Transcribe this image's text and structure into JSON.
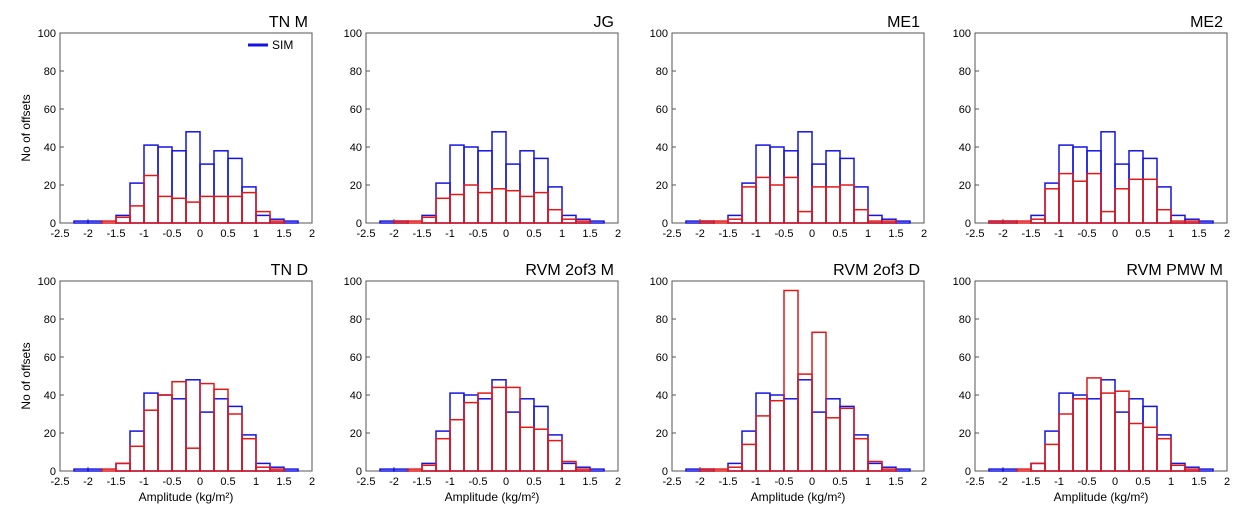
{
  "colors": {
    "sim": "#1414e0",
    "obs": "#e01818",
    "axis": "#555555",
    "grid": "#cccccc"
  },
  "legend": {
    "label": "SIM"
  },
  "xlabel": "Amplitude (kg/m²)",
  "ylabel": "No of offsets",
  "xticks": [
    "-2.5",
    "-2",
    "-1.5",
    "-1",
    "-0.5",
    "0",
    "0.5",
    "1",
    "1.5",
    "2"
  ],
  "yticks": [
    "0",
    "20",
    "40",
    "60",
    "80",
    "100"
  ],
  "chart_data": [
    {
      "type": "histogram",
      "title": "TN M",
      "xlim": [
        -2.5,
        2
      ],
      "ylim": [
        0,
        100
      ],
      "bin_edges": [
        -2.25,
        -2.0,
        -1.75,
        -1.5,
        -1.25,
        -1.0,
        -0.75,
        -0.5,
        -0.25,
        0.0,
        0.25,
        0.5,
        0.75,
        1.0,
        1.25,
        1.5,
        1.75,
        2.0
      ],
      "series": [
        {
          "name": "SIM",
          "values": [
            1,
            1,
            0,
            4,
            21,
            41,
            40,
            38,
            48,
            31,
            38,
            34,
            19,
            4,
            2,
            1,
            0
          ]
        },
        {
          "values": [
            0,
            0,
            1,
            3,
            9,
            25,
            14,
            13,
            11,
            14,
            14,
            14,
            16,
            6,
            1,
            0,
            0
          ]
        }
      ]
    },
    {
      "type": "histogram",
      "title": "JG",
      "xlim": [
        -2.5,
        2
      ],
      "ylim": [
        0,
        100
      ],
      "bin_edges": [
        -2.25,
        -2.0,
        -1.75,
        -1.5,
        -1.25,
        -1.0,
        -0.75,
        -0.5,
        -0.25,
        0.0,
        0.25,
        0.5,
        0.75,
        1.0,
        1.25,
        1.5,
        1.75,
        2.0
      ],
      "series": [
        {
          "name": "SIM",
          "values": [
            1,
            1,
            0,
            4,
            21,
            41,
            40,
            38,
            48,
            31,
            38,
            34,
            19,
            4,
            2,
            1,
            0
          ]
        },
        {
          "values": [
            0,
            1,
            1,
            3,
            13,
            15,
            20,
            16,
            18,
            17,
            14,
            16,
            7,
            2,
            1,
            0,
            0
          ]
        }
      ]
    },
    {
      "type": "histogram",
      "title": "ME1",
      "xlim": [
        -2.5,
        2
      ],
      "ylim": [
        0,
        100
      ],
      "bin_edges": [
        -2.25,
        -2.0,
        -1.75,
        -1.5,
        -1.25,
        -1.0,
        -0.75,
        -0.5,
        -0.25,
        0.0,
        0.25,
        0.5,
        0.75,
        1.0,
        1.25,
        1.5,
        1.75,
        2.0
      ],
      "series": [
        {
          "name": "SIM",
          "values": [
            1,
            1,
            0,
            4,
            21,
            41,
            40,
            38,
            48,
            31,
            38,
            34,
            19,
            4,
            2,
            1,
            0
          ]
        },
        {
          "values": [
            0,
            1,
            1,
            2,
            19,
            24,
            20,
            24,
            6,
            19,
            19,
            20,
            7,
            1,
            1,
            0,
            0
          ]
        }
      ]
    },
    {
      "type": "histogram",
      "title": "ME2",
      "xlim": [
        -2.5,
        2
      ],
      "ylim": [
        0,
        100
      ],
      "bin_edges": [
        -2.25,
        -2.0,
        -1.75,
        -1.5,
        -1.25,
        -1.0,
        -0.75,
        -0.5,
        -0.25,
        0.0,
        0.25,
        0.5,
        0.75,
        1.0,
        1.25,
        1.5,
        1.75,
        2.0
      ],
      "series": [
        {
          "name": "SIM",
          "values": [
            1,
            1,
            0,
            4,
            21,
            41,
            40,
            38,
            48,
            31,
            38,
            34,
            19,
            4,
            2,
            1,
            0
          ]
        },
        {
          "values": [
            1,
            1,
            1,
            2,
            18,
            26,
            22,
            26,
            6,
            18,
            23,
            23,
            7,
            1,
            1,
            0,
            0
          ]
        }
      ]
    },
    {
      "type": "histogram",
      "title": "TN D",
      "xlim": [
        -2.5,
        2
      ],
      "ylim": [
        0,
        100
      ],
      "bin_edges": [
        -2.25,
        -2.0,
        -1.75,
        -1.5,
        -1.25,
        -1.0,
        -0.75,
        -0.5,
        -0.25,
        0.0,
        0.25,
        0.5,
        0.75,
        1.0,
        1.25,
        1.5,
        1.75,
        2.0
      ],
      "series": [
        {
          "name": "SIM",
          "values": [
            1,
            1,
            0,
            4,
            21,
            41,
            40,
            38,
            48,
            31,
            38,
            34,
            19,
            4,
            2,
            1,
            0
          ]
        },
        {
          "values": [
            0,
            0,
            1,
            4,
            13,
            32,
            40,
            47,
            12,
            46,
            43,
            30,
            17,
            2,
            1,
            0,
            0
          ]
        }
      ]
    },
    {
      "type": "histogram",
      "title": "RVM 2of3 M",
      "xlim": [
        -2.5,
        2
      ],
      "ylim": [
        0,
        100
      ],
      "bin_edges": [
        -2.25,
        -2.0,
        -1.75,
        -1.5,
        -1.25,
        -1.0,
        -0.75,
        -0.5,
        -0.25,
        0.0,
        0.25,
        0.5,
        0.75,
        1.0,
        1.25,
        1.5,
        1.75,
        2.0
      ],
      "series": [
        {
          "name": "SIM",
          "values": [
            1,
            1,
            0,
            4,
            21,
            41,
            40,
            38,
            48,
            31,
            38,
            34,
            19,
            4,
            2,
            1,
            0
          ]
        },
        {
          "values": [
            0,
            0,
            1,
            3,
            17,
            27,
            36,
            41,
            44,
            44,
            23,
            22,
            16,
            5,
            1,
            0,
            0
          ]
        }
      ]
    },
    {
      "type": "histogram",
      "title": "RVM 2of3 D",
      "xlim": [
        -2.5,
        2
      ],
      "ylim": [
        0,
        100
      ],
      "bin_edges": [
        -2.25,
        -2.0,
        -1.75,
        -1.5,
        -1.25,
        -1.0,
        -0.75,
        -0.5,
        -0.25,
        0.0,
        0.25,
        0.5,
        0.75,
        1.0,
        1.25,
        1.5,
        1.75,
        2.0
      ],
      "series": [
        {
          "name": "SIM",
          "values": [
            1,
            1,
            0,
            4,
            21,
            41,
            40,
            38,
            48,
            31,
            38,
            34,
            19,
            4,
            2,
            1,
            0
          ]
        },
        {
          "values": [
            0,
            1,
            1,
            2,
            14,
            29,
            37,
            95,
            51,
            73,
            28,
            33,
            17,
            5,
            1,
            0,
            0
          ]
        }
      ]
    },
    {
      "type": "histogram",
      "title": "RVM PMW M",
      "xlim": [
        -2.5,
        2
      ],
      "ylim": [
        0,
        100
      ],
      "bin_edges": [
        -2.25,
        -2.0,
        -1.75,
        -1.5,
        -1.25,
        -1.0,
        -0.75,
        -0.5,
        -0.25,
        0.0,
        0.25,
        0.5,
        0.75,
        1.0,
        1.25,
        1.5,
        1.75,
        2.0
      ],
      "series": [
        {
          "name": "SIM",
          "values": [
            1,
            1,
            0,
            4,
            21,
            41,
            40,
            38,
            48,
            31,
            38,
            34,
            19,
            4,
            2,
            1,
            0
          ]
        },
        {
          "values": [
            0,
            0,
            1,
            4,
            14,
            30,
            38,
            49,
            41,
            42,
            25,
            23,
            17,
            3,
            1,
            0,
            0
          ]
        }
      ]
    }
  ]
}
